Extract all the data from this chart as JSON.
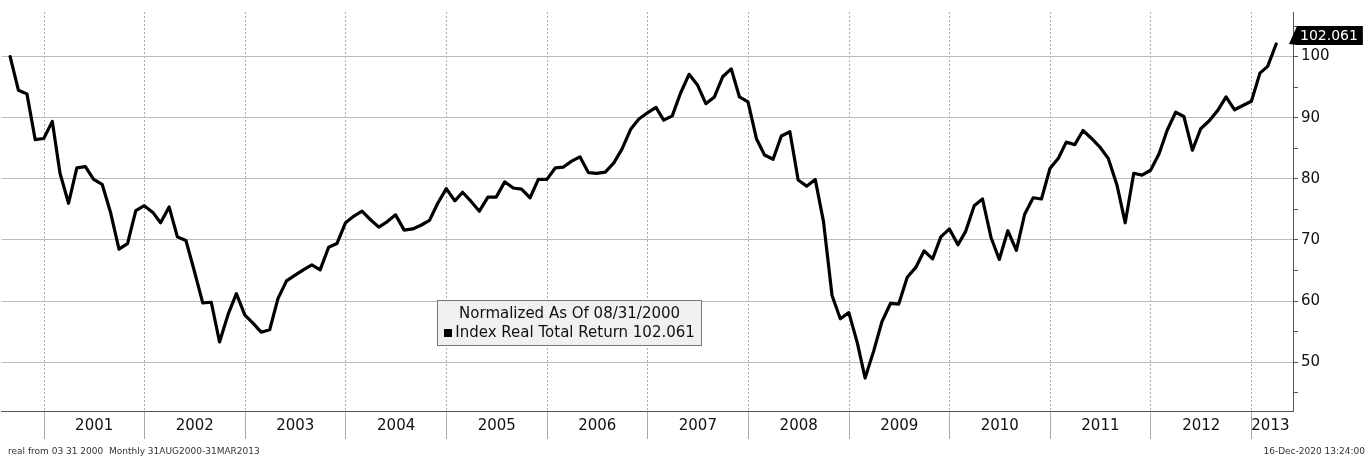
{
  "chart_data": {
    "type": "line",
    "legend_title": "Normalized As Of 08/31/2000",
    "legend": "bottom",
    "grid": true,
    "marker": "none",
    "line_style": "solid",
    "x": [
      "2000-08-31",
      "2000-09-30",
      "2000-10-31",
      "2000-11-30",
      "2000-12-31",
      "2001-01-31",
      "2001-02-28",
      "2001-03-31",
      "2001-04-30",
      "2001-05-31",
      "2001-06-30",
      "2001-07-31",
      "2001-08-31",
      "2001-09-30",
      "2001-10-31",
      "2001-11-30",
      "2001-12-31",
      "2002-01-31",
      "2002-02-28",
      "2002-03-31",
      "2002-04-30",
      "2002-05-31",
      "2002-06-30",
      "2002-07-31",
      "2002-08-31",
      "2002-09-30",
      "2002-10-31",
      "2002-11-30",
      "2002-12-31",
      "2003-01-31",
      "2003-02-28",
      "2003-03-31",
      "2003-04-30",
      "2003-05-31",
      "2003-06-30",
      "2003-07-31",
      "2003-08-31",
      "2003-09-30",
      "2003-10-31",
      "2003-11-30",
      "2003-12-31",
      "2004-01-31",
      "2004-02-29",
      "2004-03-31",
      "2004-04-30",
      "2004-05-31",
      "2004-06-30",
      "2004-07-31",
      "2004-08-31",
      "2004-09-30",
      "2004-10-31",
      "2004-11-30",
      "2004-12-31",
      "2005-01-31",
      "2005-02-28",
      "2005-03-31",
      "2005-04-30",
      "2005-05-31",
      "2005-06-30",
      "2005-07-31",
      "2005-08-31",
      "2005-09-30",
      "2005-10-31",
      "2005-11-30",
      "2005-12-31",
      "2006-01-31",
      "2006-02-28",
      "2006-03-31",
      "2006-04-30",
      "2006-05-31",
      "2006-06-30",
      "2006-07-31",
      "2006-08-31",
      "2006-09-30",
      "2006-10-31",
      "2006-11-30",
      "2006-12-31",
      "2007-01-31",
      "2007-02-28",
      "2007-03-31",
      "2007-04-30",
      "2007-05-31",
      "2007-06-30",
      "2007-07-31",
      "2007-08-31",
      "2007-09-30",
      "2007-10-31",
      "2007-11-30",
      "2007-12-31",
      "2008-01-31",
      "2008-02-29",
      "2008-03-31",
      "2008-04-30",
      "2008-05-31",
      "2008-06-30",
      "2008-07-31",
      "2008-08-31",
      "2008-09-30",
      "2008-10-31",
      "2008-11-30",
      "2008-12-31",
      "2009-01-31",
      "2009-02-28",
      "2009-03-31",
      "2009-04-30",
      "2009-05-31",
      "2009-06-30",
      "2009-07-31",
      "2009-08-31",
      "2009-09-30",
      "2009-10-31",
      "2009-11-30",
      "2009-12-31",
      "2010-01-31",
      "2010-02-28",
      "2010-03-31",
      "2010-04-30",
      "2010-05-31",
      "2010-06-30",
      "2010-07-31",
      "2010-08-31",
      "2010-09-30",
      "2010-10-31",
      "2010-11-30",
      "2010-12-31",
      "2011-01-31",
      "2011-02-28",
      "2011-03-31",
      "2011-04-30",
      "2011-05-31",
      "2011-06-30",
      "2011-07-31",
      "2011-08-31",
      "2011-09-30",
      "2011-10-31",
      "2011-11-30",
      "2011-12-31",
      "2012-01-31",
      "2012-02-29",
      "2012-03-31",
      "2012-04-30",
      "2012-05-31",
      "2012-06-30",
      "2012-07-31",
      "2012-08-31",
      "2012-09-30",
      "2012-10-31",
      "2012-11-30",
      "2012-12-31",
      "2013-01-31",
      "2013-02-28",
      "2013-03-31"
    ],
    "series": [
      {
        "name": "Index Real Total Return 102.061",
        "color": "#000000",
        "values": [
          100,
          94.5,
          93.9,
          86.4,
          86.6,
          89.4,
          80.9,
          76.0,
          81.8,
          82.0,
          79.9,
          79.1,
          74.4,
          68.5,
          69.4,
          74.8,
          75.6,
          74.5,
          72.8,
          75.4,
          70.5,
          69.9,
          65.0,
          59.7,
          59.8,
          53.3,
          57.8,
          61.2,
          57.7,
          56.3,
          54.9,
          55.3,
          60.4,
          63.3,
          64.2,
          65.1,
          65.9,
          65.1,
          68.8,
          69.4,
          72.8,
          73.9,
          74.7,
          73.3,
          72.1,
          73.0,
          74.1,
          71.6,
          71.8,
          72.4,
          73.2,
          76.0,
          78.4,
          76.4,
          77.8,
          76.3,
          74.7,
          77.0,
          77.0,
          79.5,
          78.5,
          78.3,
          76.9,
          79.9,
          79.9,
          81.8,
          81.9,
          82.9,
          83.6,
          81.0,
          80.9,
          81.1,
          82.6,
          84.9,
          88.1,
          89.8,
          90.8,
          91.7,
          89.6,
          90.3,
          94.0,
          97.1,
          95.4,
          92.3,
          93.4,
          96.7,
          98.0,
          93.4,
          92.6,
          86.5,
          83.9,
          83.2,
          87.0,
          87.7,
          79.8,
          78.8,
          79.9,
          73.0,
          60.9,
          57.1,
          58.1,
          53.1,
          47.4,
          51.8,
          56.6,
          59.6,
          59.5,
          63.9,
          65.5,
          68.2,
          66.9,
          70.5,
          71.8,
          69.2,
          71.4,
          75.6,
          76.7,
          70.4,
          66.8,
          71.5,
          68.3,
          74.2,
          76.9,
          76.7,
          81.7,
          83.4,
          86.0,
          85.6,
          87.9,
          86.6,
          85.2,
          83.3,
          79.0,
          72.8,
          80.9,
          80.6,
          81.4,
          84.1,
          87.9,
          90.9,
          90.2,
          84.7,
          88.2,
          89.5,
          91.2,
          93.4,
          91.3,
          92.0,
          92.7,
          97.3,
          98.4,
          102.061
        ]
      }
    ],
    "xlim": [
      "2000-07-31",
      "2013-05-31"
    ],
    "xticks": [
      {
        "value": "2001-01-01",
        "label": null
      },
      {
        "value": "2001-07-02",
        "label": "2001"
      },
      {
        "value": "2002-01-01",
        "label": null
      },
      {
        "value": "2002-07-02",
        "label": "2002"
      },
      {
        "value": "2003-01-01",
        "label": null
      },
      {
        "value": "2003-07-02",
        "label": "2003"
      },
      {
        "value": "2004-01-01",
        "label": null
      },
      {
        "value": "2004-07-02",
        "label": "2004"
      },
      {
        "value": "2005-01-01",
        "label": null
      },
      {
        "value": "2005-07-02",
        "label": "2005"
      },
      {
        "value": "2006-01-01",
        "label": null
      },
      {
        "value": "2006-07-02",
        "label": "2006"
      },
      {
        "value": "2007-01-01",
        "label": null
      },
      {
        "value": "2007-07-02",
        "label": "2007"
      },
      {
        "value": "2008-01-01",
        "label": null
      },
      {
        "value": "2008-07-02",
        "label": "2008"
      },
      {
        "value": "2009-01-01",
        "label": null
      },
      {
        "value": "2009-07-02",
        "label": "2009"
      },
      {
        "value": "2010-01-01",
        "label": null
      },
      {
        "value": "2010-07-02",
        "label": "2010"
      },
      {
        "value": "2011-01-01",
        "label": null
      },
      {
        "value": "2011-07-02",
        "label": "2011"
      },
      {
        "value": "2012-01-01",
        "label": null
      },
      {
        "value": "2012-07-02",
        "label": "2012"
      },
      {
        "value": "2013-01-01",
        "label": null
      },
      {
        "value": "2013-03-10",
        "label": "2013"
      }
    ],
    "ylim": [
      42,
      107.3
    ],
    "yticks": [
      {
        "value": 45,
        "label": null
      },
      50,
      {
        "value": 55,
        "label": null
      },
      60,
      {
        "value": 65,
        "label": null
      },
      70,
      {
        "value": 75,
        "label": null
      },
      80,
      {
        "value": 85,
        "label": null
      },
      90,
      {
        "value": 95,
        "label": null
      },
      100,
      {
        "value": 105,
        "label": null
      }
    ],
    "annotations": [
      {
        "text": "102.061",
        "x": "2013-03-31",
        "y": 102.061
      },
      "real from 03 31 2000  Monthly 31AUG2000-31MAR2013",
      "16-Dec-2020 13:24:00"
    ]
  }
}
